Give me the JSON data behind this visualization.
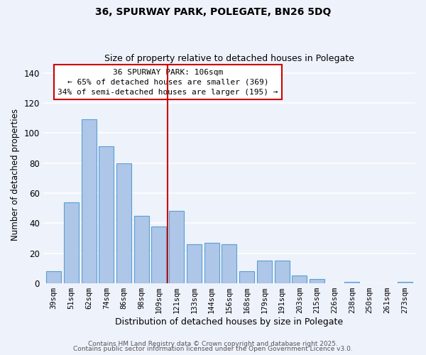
{
  "title": "36, SPURWAY PARK, POLEGATE, BN26 5DQ",
  "subtitle": "Size of property relative to detached houses in Polegate",
  "xlabel": "Distribution of detached houses by size in Polegate",
  "ylabel": "Number of detached properties",
  "bar_labels": [
    "39sqm",
    "51sqm",
    "62sqm",
    "74sqm",
    "86sqm",
    "98sqm",
    "109sqm",
    "121sqm",
    "133sqm",
    "144sqm",
    "156sqm",
    "168sqm",
    "179sqm",
    "191sqm",
    "203sqm",
    "215sqm",
    "226sqm",
    "238sqm",
    "250sqm",
    "261sqm",
    "273sqm"
  ],
  "bar_values": [
    8,
    54,
    109,
    91,
    80,
    45,
    38,
    48,
    26,
    27,
    26,
    8,
    15,
    15,
    5,
    3,
    0,
    1,
    0,
    0,
    1
  ],
  "bar_color": "#aec6e8",
  "bar_edge_color": "#5a9fd4",
  "ylim": [
    0,
    145
  ],
  "yticks": [
    0,
    20,
    40,
    60,
    80,
    100,
    120,
    140
  ],
  "vline_x": 6.5,
  "vline_color": "#cc0000",
  "annotation_title": "36 SPURWAY PARK: 106sqm",
  "annotation_line1": "← 65% of detached houses are smaller (369)",
  "annotation_line2": "34% of semi-detached houses are larger (195) →",
  "footer1": "Contains HM Land Registry data © Crown copyright and database right 2025.",
  "footer2": "Contains public sector information licensed under the Open Government Licence v3.0.",
  "background_color": "#eef2fb",
  "grid_color": "#ffffff"
}
